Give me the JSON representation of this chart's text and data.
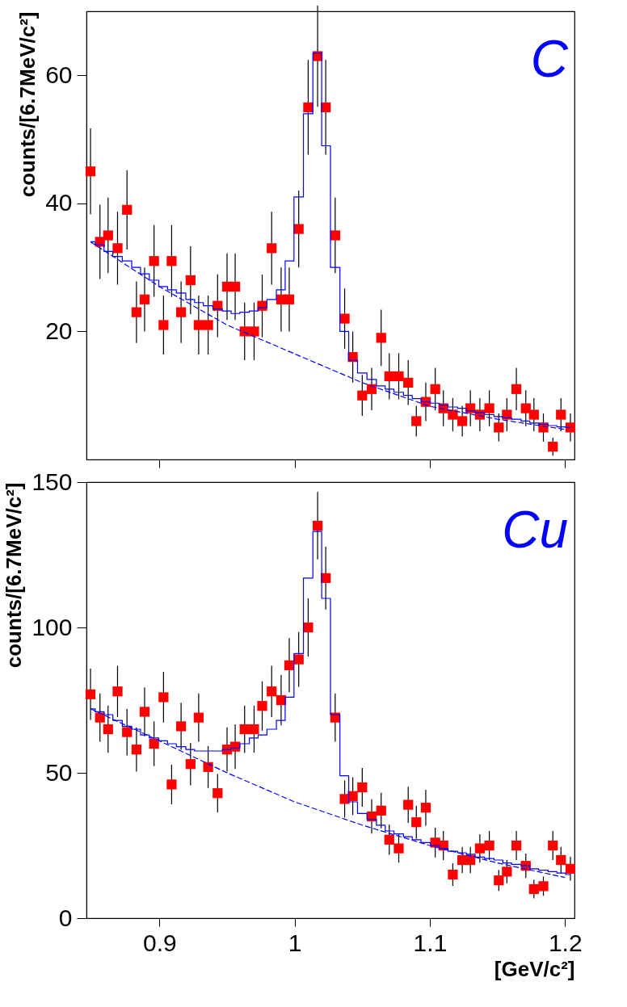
{
  "chart_data": [
    {
      "type": "scatter",
      "ylabel": "counts/[6.7MeV/c²]",
      "annotations": [
        "C"
      ],
      "x": [
        0.849,
        0.856,
        0.862,
        0.869,
        0.876,
        0.883,
        0.889,
        0.896,
        0.903,
        0.909,
        0.916,
        0.923,
        0.929,
        0.936,
        0.943,
        0.95,
        0.956,
        0.963,
        0.97,
        0.976,
        0.983,
        0.99,
        0.996,
        1.003,
        1.01,
        1.017,
        1.023,
        1.03,
        1.037,
        1.043,
        1.05,
        1.057,
        1.064,
        1.07,
        1.077,
        1.084,
        1.09,
        1.097,
        1.104,
        1.11,
        1.117,
        1.124,
        1.13,
        1.137,
        1.144,
        1.151,
        1.157,
        1.164,
        1.171,
        1.177,
        1.184,
        1.191,
        1.197,
        1.204
      ],
      "series": [
        {
          "color": "#ff0000",
          "marker": "square",
          "values": [
            45,
            34,
            35,
            33,
            39,
            23,
            25,
            31,
            21,
            31,
            23,
            28,
            21,
            21,
            24,
            27,
            27,
            20,
            20,
            24,
            33,
            25,
            25,
            36,
            55,
            63,
            55,
            35,
            22,
            16,
            10,
            11,
            19,
            13,
            13,
            12,
            6,
            9,
            11,
            8,
            7,
            6,
            8,
            7,
            8,
            5,
            7,
            11,
            8,
            7,
            5,
            2,
            7,
            5
          ],
          "errors": [
            6.7,
            5.8,
            5.9,
            5.7,
            6.2,
            4.8,
            5,
            5.6,
            4.6,
            5.6,
            4.8,
            5.3,
            4.6,
            4.6,
            4.9,
            5.2,
            5.2,
            4.5,
            4.5,
            4.9,
            5.7,
            5,
            5,
            6,
            7.4,
            7.9,
            7.4,
            5.9,
            4.7,
            4,
            3.2,
            3.3,
            4.4,
            3.6,
            3.6,
            3.5,
            2.4,
            3,
            3.3,
            2.8,
            2.6,
            2.4,
            2.8,
            2.6,
            2.8,
            2.2,
            2.6,
            3.3,
            2.8,
            2.6,
            2.2,
            1.4,
            2.6,
            2.2
          ]
        },
        {
          "type": "step",
          "color": "#0000ff",
          "values": [
            34,
            33.5,
            32.5,
            31.7,
            31,
            30,
            29,
            28,
            27,
            26.5,
            26,
            25,
            24.5,
            24,
            23.5,
            23.2,
            22.8,
            23,
            23.2,
            23.7,
            25,
            26.5,
            31,
            41,
            54,
            63.5,
            49,
            30,
            20,
            15.5,
            13.5,
            12.5,
            11.5,
            11,
            10.5,
            10,
            9.5,
            9,
            8.8,
            8.5,
            8.2,
            8,
            7.6,
            7.3,
            7,
            6.7,
            6.5,
            6.3,
            6,
            5.7,
            5.5,
            5.3,
            5.1,
            5
          ]
        },
        {
          "type": "line",
          "color": "#0000ff",
          "line_style": "dashed",
          "x": [
            0.849,
            0.9,
            0.95,
            1.0,
            1.05,
            1.1,
            1.15,
            1.2
          ],
          "values": [
            34,
            27,
            21,
            16.5,
            12,
            8.3,
            6.3,
            4.7
          ]
        }
      ],
      "xlim": [
        0.846,
        1.207
      ],
      "xticks": [
        0.9,
        1,
        1.1,
        1.2
      ],
      "ylim": [
        0,
        70
      ],
      "yticks": [
        20,
        40,
        60
      ],
      "tick_labels": "y"
    },
    {
      "type": "scatter",
      "xlabel": "[GeV/c²]",
      "ylabel": "counts/[6.7MeV/c²]",
      "annotations": [
        "Cu"
      ],
      "x": [
        0.849,
        0.856,
        0.862,
        0.869,
        0.876,
        0.883,
        0.889,
        0.896,
        0.903,
        0.909,
        0.916,
        0.923,
        0.929,
        0.936,
        0.943,
        0.95,
        0.956,
        0.963,
        0.97,
        0.976,
        0.983,
        0.99,
        0.996,
        1.003,
        1.01,
        1.017,
        1.023,
        1.03,
        1.037,
        1.043,
        1.05,
        1.057,
        1.064,
        1.07,
        1.077,
        1.084,
        1.09,
        1.097,
        1.104,
        1.11,
        1.117,
        1.124,
        1.13,
        1.137,
        1.144,
        1.151,
        1.157,
        1.164,
        1.171,
        1.177,
        1.184,
        1.191,
        1.197,
        1.204
      ],
      "series": [
        {
          "color": "#ff0000",
          "marker": "square",
          "values": [
            77,
            69,
            65,
            78,
            64,
            58,
            71,
            60,
            76,
            46,
            66,
            53,
            69,
            52,
            43,
            58,
            59,
            65,
            65,
            73,
            78,
            75,
            87,
            89,
            100,
            135,
            117,
            69,
            41,
            42,
            45,
            35,
            37,
            27,
            24,
            39,
            33,
            38,
            26,
            25,
            15,
            20,
            20,
            24,
            25,
            13,
            16,
            25,
            18,
            10,
            11,
            25,
            20,
            17
          ],
          "errors": [
            8.8,
            8.3,
            8.1,
            8.8,
            8,
            7.6,
            8.4,
            7.7,
            8.7,
            6.8,
            8.1,
            7.3,
            8.3,
            7.2,
            6.6,
            7.6,
            7.7,
            8.1,
            8.1,
            8.5,
            8.8,
            8.7,
            9.3,
            9.4,
            10,
            11.6,
            10.8,
            8.3,
            6.4,
            6.5,
            6.7,
            5.9,
            6.1,
            5.2,
            4.9,
            6.2,
            5.7,
            6.2,
            5.1,
            5,
            3.9,
            4.5,
            4.5,
            4.9,
            5,
            3.6,
            4,
            5,
            4.2,
            3.2,
            3.3,
            5,
            4.5,
            4.1
          ]
        },
        {
          "type": "step",
          "color": "#0000ff",
          "values": [
            72,
            71,
            70,
            68,
            66,
            65,
            63,
            62,
            61,
            60,
            59,
            58,
            57.5,
            57.5,
            57.5,
            58,
            58.5,
            60,
            62,
            63,
            65,
            68,
            76,
            91,
            117,
            133,
            110,
            70,
            49,
            40,
            36,
            34,
            32,
            30,
            29,
            28,
            27,
            26,
            25,
            24,
            23,
            22.5,
            22,
            21,
            20.5,
            20,
            19,
            18.5,
            18,
            17,
            16.5,
            16,
            15.5,
            15
          ]
        },
        {
          "type": "line",
          "color": "#0000ff",
          "line_style": "dashed",
          "x": [
            0.849,
            0.9,
            0.95,
            1.0,
            1.05,
            1.1,
            1.15,
            1.2
          ],
          "values": [
            72,
            61,
            50,
            40,
            32,
            25,
            19,
            14
          ]
        }
      ],
      "xlim": [
        0.846,
        1.207
      ],
      "xticks": [
        0.9,
        1,
        1.1,
        1.2
      ],
      "ylim": [
        0,
        150
      ],
      "yticks": [
        0,
        50,
        100,
        150
      ]
    }
  ]
}
